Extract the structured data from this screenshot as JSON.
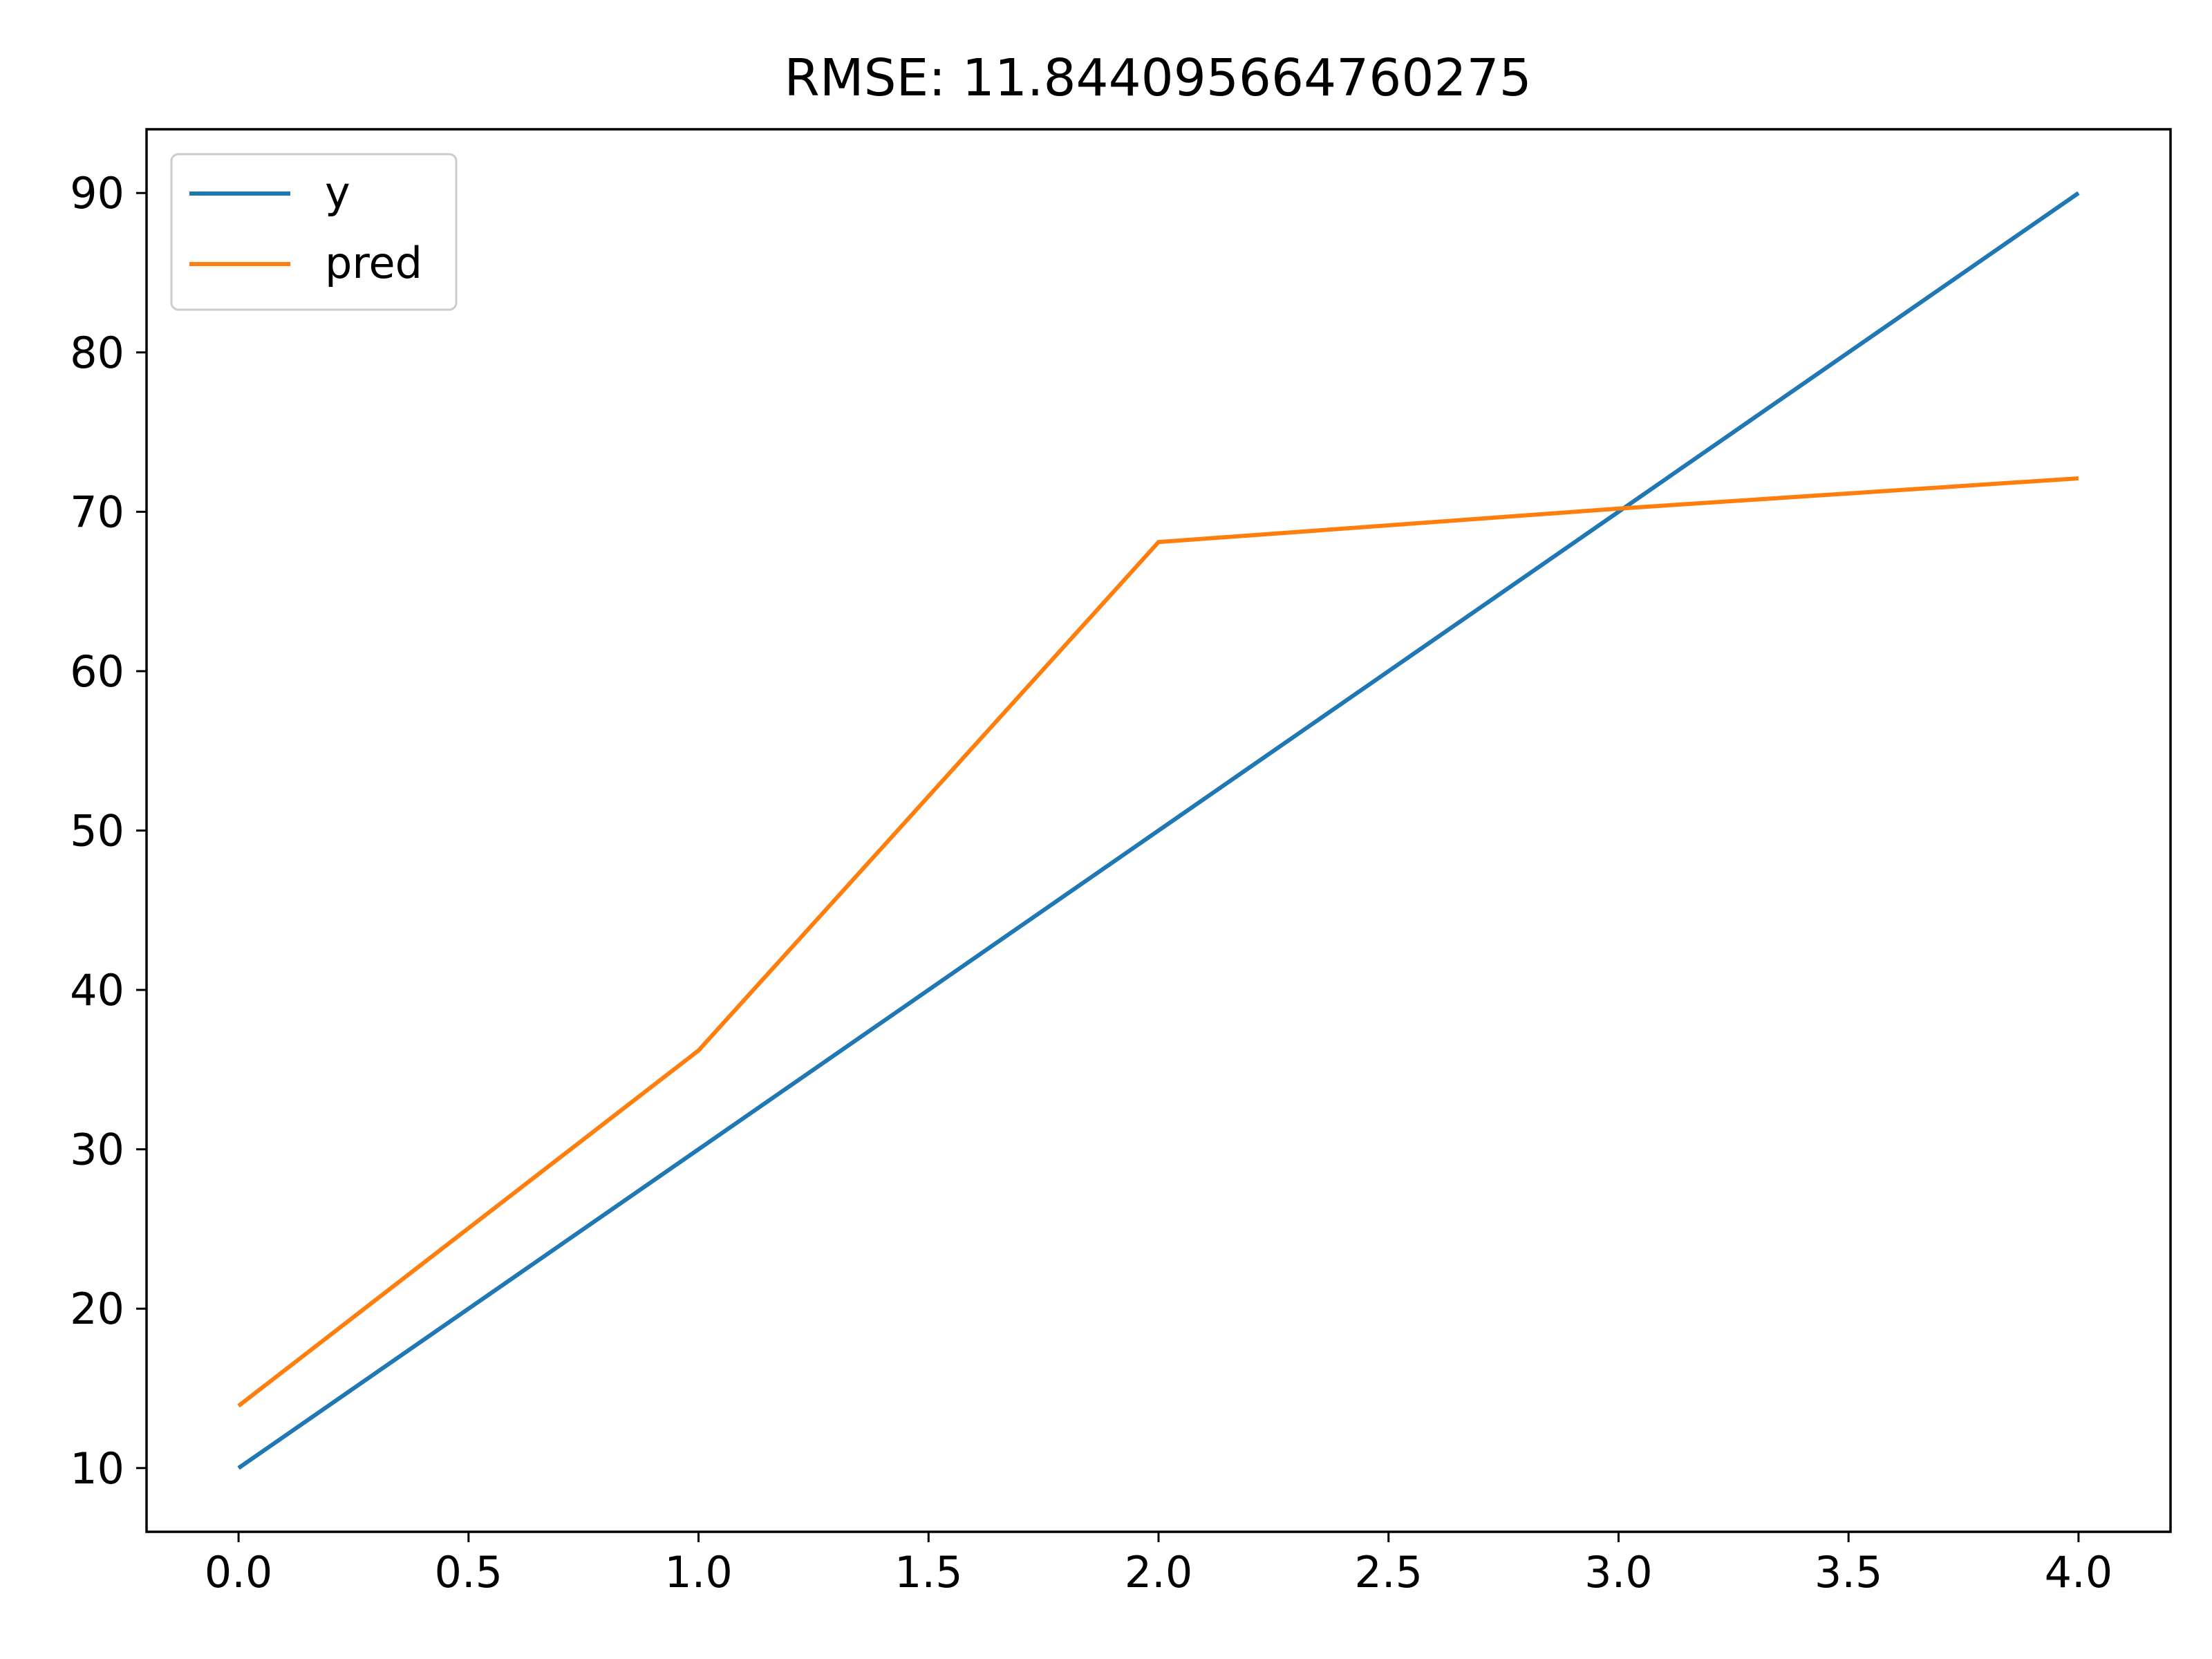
{
  "chart_data": {
    "type": "line",
    "title": "RMSE: 11.844095664760275",
    "xlabel": "",
    "ylabel": "",
    "xlim": [
      -0.2,
      4.2
    ],
    "ylim": [
      6,
      94
    ],
    "x_ticks": [
      0.0,
      0.5,
      1.0,
      1.5,
      2.0,
      2.5,
      3.0,
      3.5,
      4.0
    ],
    "x_tick_labels": [
      "0.0",
      "0.5",
      "1.0",
      "1.5",
      "2.0",
      "2.5",
      "3.0",
      "3.5",
      "4.0"
    ],
    "y_ticks": [
      10,
      20,
      30,
      40,
      50,
      60,
      70,
      80,
      90
    ],
    "y_tick_labels": [
      "10",
      "20",
      "30",
      "40",
      "50",
      "60",
      "70",
      "80",
      "90"
    ],
    "grid": false,
    "legend_position": "top-left",
    "x": [
      0,
      1,
      2,
      3,
      4
    ],
    "series": [
      {
        "name": "y",
        "color": "#1f77b4",
        "values": [
          10,
          30,
          50,
          70,
          90
        ]
      },
      {
        "name": "pred",
        "color": "#ff7f0e",
        "values": [
          13.9,
          36.2,
          68.1,
          70.2,
          72.1
        ]
      }
    ]
  }
}
